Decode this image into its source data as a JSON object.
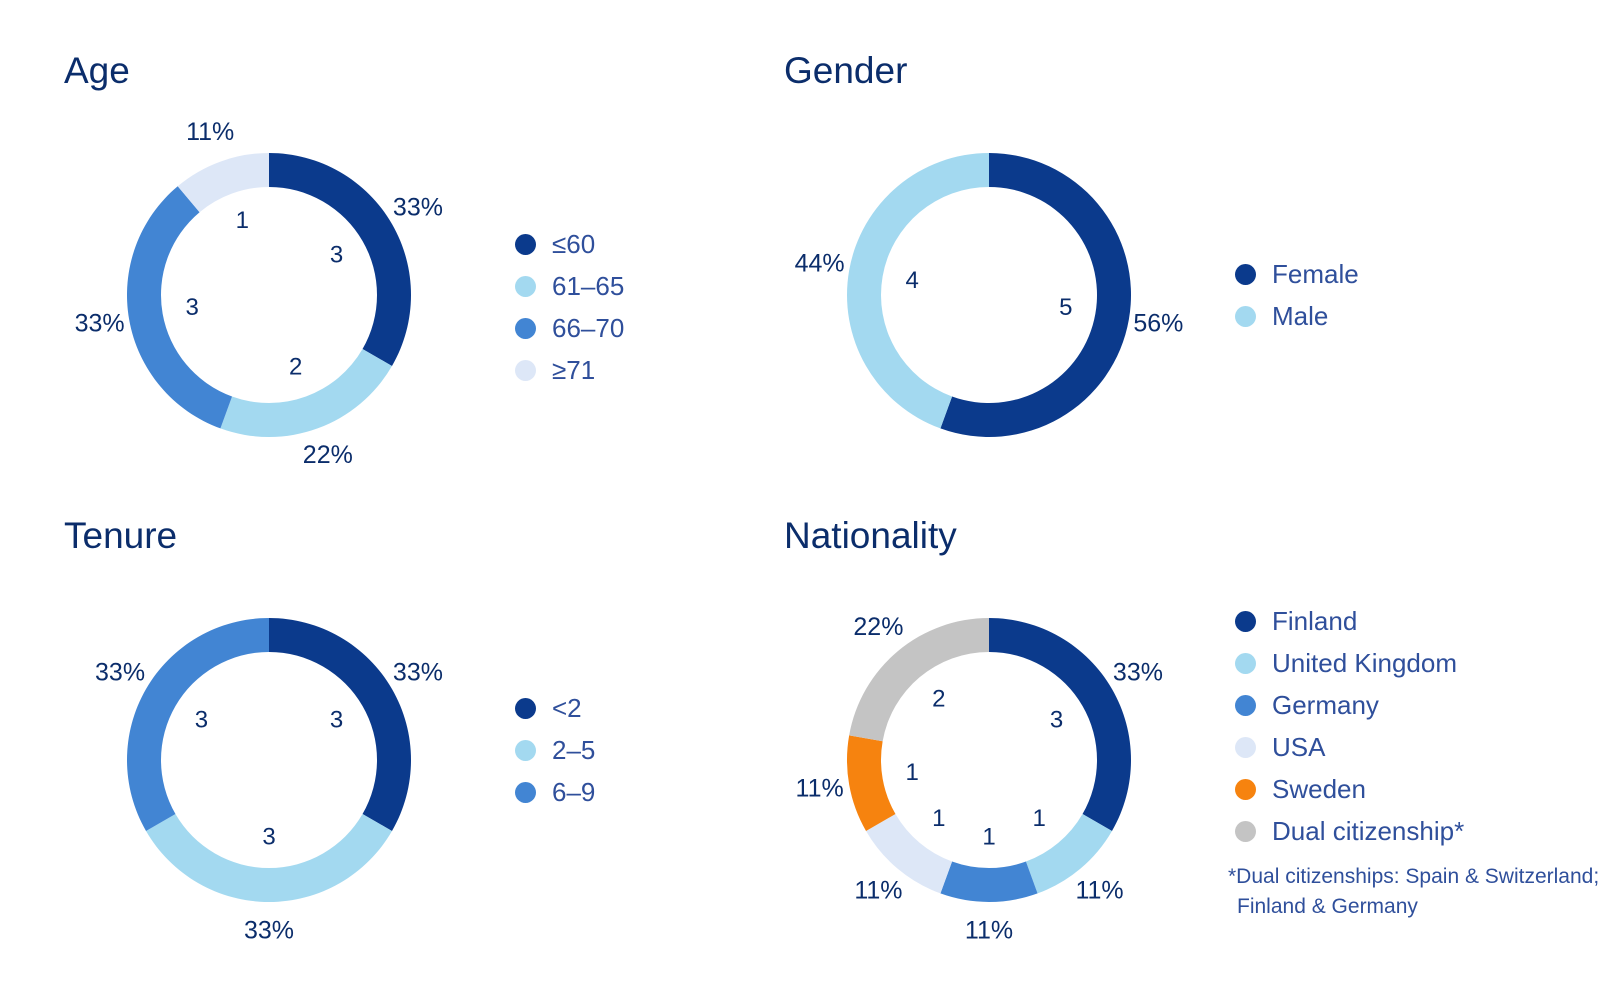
{
  "colors": {
    "dark_navy": "#0b3a8c",
    "light_blue": "#a3d9f0",
    "mid_blue": "#4285d3",
    "pale_blue": "#dde7f7",
    "orange": "#f6830f",
    "grey": "#c4c4c4",
    "text": "#0b2d6b"
  },
  "panels": {
    "age": {
      "title": "Age",
      "legend": [
        "≤60",
        "61–65",
        "66–70",
        "≥71"
      ]
    },
    "gender": {
      "title": "Gender",
      "legend": [
        "Female",
        "Male"
      ]
    },
    "tenure": {
      "title": "Tenure",
      "legend": [
        "<2",
        "2–5",
        "6–9"
      ]
    },
    "nationality": {
      "title": "Nationality",
      "legend": [
        "Finland",
        "United Kingdom",
        "Germany",
        "USA",
        "Sweden",
        "Dual citizenship*"
      ],
      "footnote_line1": "*Dual citizenships: Spain & Switzerland;",
      "footnote_line2": "Finland & Germany"
    }
  },
  "chart_data": [
    {
      "type": "pie",
      "title": "Age",
      "categories": [
        "≤60",
        "61–65",
        "66–70",
        "≥71"
      ],
      "values": [
        3,
        2,
        3,
        1
      ],
      "percent_labels": [
        "33%",
        "22%",
        "33%",
        "11%"
      ],
      "colors": [
        "#0b3a8c",
        "#a3d9f0",
        "#4285d3",
        "#dde7f7"
      ],
      "legend": "right"
    },
    {
      "type": "pie",
      "title": "Gender",
      "categories": [
        "Female",
        "Male"
      ],
      "values": [
        5,
        4
      ],
      "percent_labels": [
        "56%",
        "44%"
      ],
      "colors": [
        "#0b3a8c",
        "#a3d9f0"
      ],
      "legend": "right"
    },
    {
      "type": "pie",
      "title": "Tenure",
      "categories": [
        "<2",
        "2–5",
        "6–9"
      ],
      "values": [
        3,
        3,
        3
      ],
      "percent_labels": [
        "33%",
        "33%",
        "33%"
      ],
      "colors": [
        "#0b3a8c",
        "#a3d9f0",
        "#4285d3"
      ],
      "legend": "right"
    },
    {
      "type": "pie",
      "title": "Nationality",
      "categories": [
        "Finland",
        "United Kingdom",
        "Germany",
        "USA",
        "Sweden",
        "Dual citizenship*"
      ],
      "values": [
        3,
        1,
        1,
        1,
        1,
        2
      ],
      "percent_labels": [
        "33%",
        "11%",
        "11%",
        "11%",
        "11%",
        "22%"
      ],
      "colors": [
        "#0b3a8c",
        "#a3d9f0",
        "#4285d3",
        "#dde7f7",
        "#f6830f",
        "#c4c4c4"
      ],
      "legend": "right"
    }
  ]
}
